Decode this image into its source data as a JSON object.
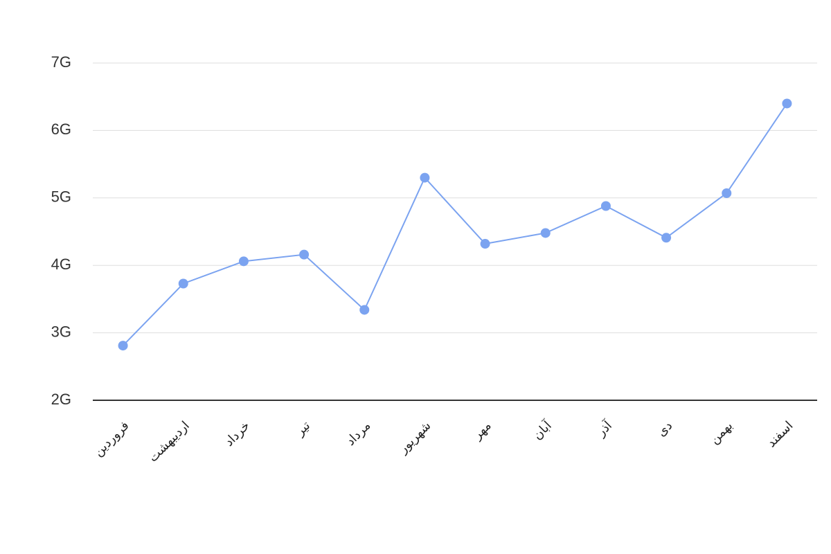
{
  "chart_data": {
    "type": "line",
    "categories": [
      "فروردین",
      "اردیبهشت",
      "خرداد",
      "تیر",
      "مرداد",
      "شهریور",
      "مهر",
      "آبان",
      "آذر",
      "دی",
      "بهمن",
      "اسفند"
    ],
    "values": [
      2.81,
      3.73,
      4.06,
      4.16,
      3.34,
      5.3,
      4.32,
      4.48,
      4.88,
      4.41,
      5.07,
      6.4
    ],
    "color": "#7ba3f0",
    "ylim": [
      2,
      7
    ],
    "yticks": [
      {
        "value": 2,
        "label": "2G"
      },
      {
        "value": 3,
        "label": "3G"
      },
      {
        "value": 4,
        "label": "4G"
      },
      {
        "value": 5,
        "label": "5G"
      },
      {
        "value": 6,
        "label": "6G"
      },
      {
        "value": 7,
        "label": "7G"
      }
    ],
    "grid": true
  }
}
